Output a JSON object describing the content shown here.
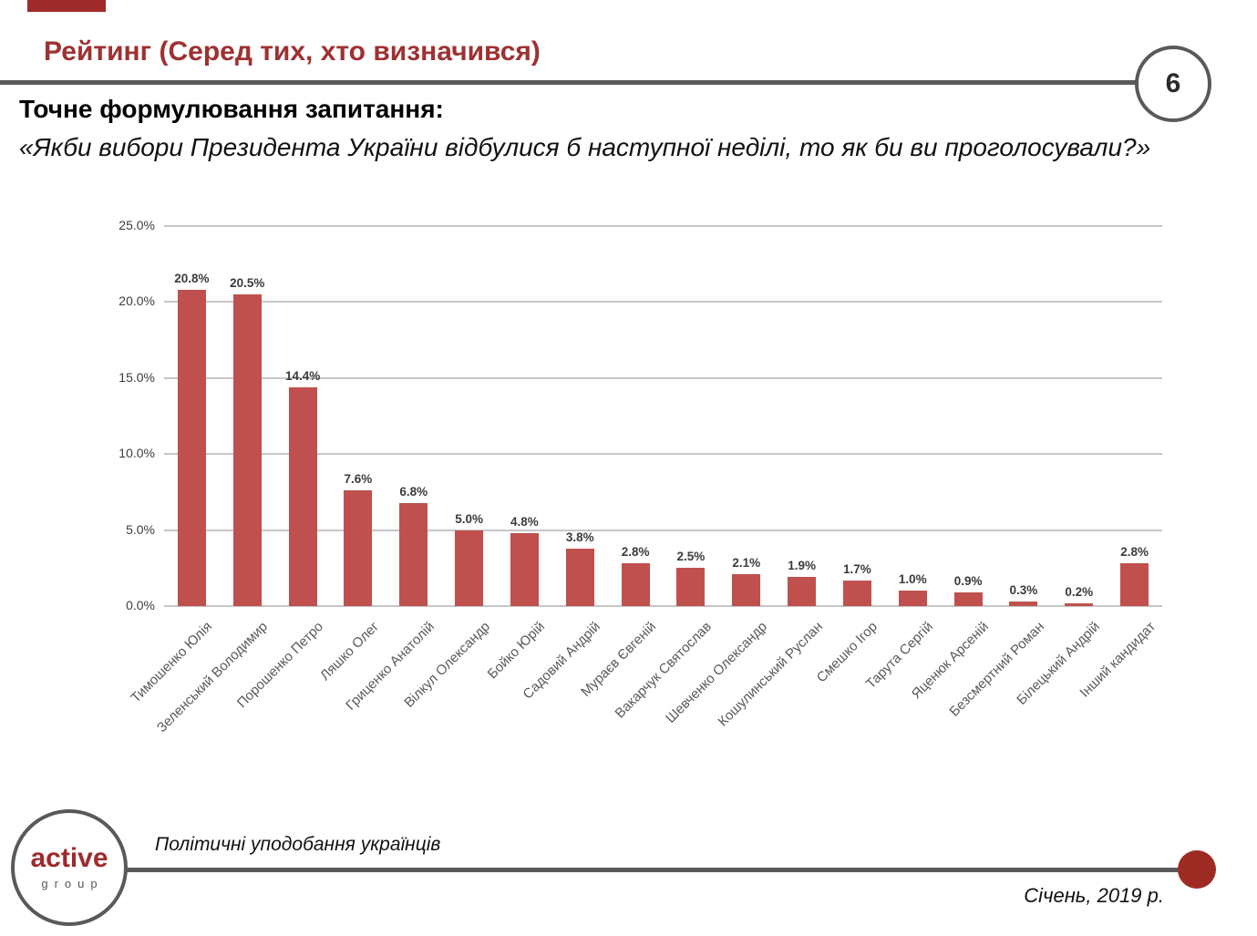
{
  "slide": {
    "page_number": "6",
    "title": "Рейтинг (Серед тих, хто визначився)",
    "question_label": "Точне формулювання запитання:",
    "question_text": "«Якби вибори Президента України відбулися б наступної неділі, то як би ви проголосували?»",
    "footer": {
      "logo_line1": "active",
      "logo_line2": "group",
      "project_name": "Політичні уподобання українців",
      "date": "Січень, 2019 р."
    },
    "colors": {
      "accent_bar_red": "#c0504d",
      "title_red": "#9e3132",
      "divider_gray": "#58595b",
      "footer_dot_red": "#9e2b23"
    }
  },
  "chart_data": {
    "type": "bar",
    "title": "",
    "xlabel": "",
    "ylabel": "",
    "categories": [
      "Тимошенко Юлія",
      "Зеленський Володимир",
      "Порошенко Петро",
      "Ляшко Олег",
      "Гриценко Анатолій",
      "Вілкул Олександр",
      "Бойко Юрій",
      "Садовий Андрій",
      "Мураєв Євгеній",
      "Вакарчук Святослав",
      "Шевченко Олександр",
      "Кошулинський Руслан",
      "Смешко Ігор",
      "Тарута Сергій",
      "Яценюк Арсеній",
      "Безсмертний Роман",
      "Білецький Андрій",
      "Інший кандидат"
    ],
    "values": [
      20.8,
      20.5,
      14.4,
      7.6,
      6.8,
      5.0,
      4.8,
      3.8,
      2.8,
      2.5,
      2.1,
      1.9,
      1.7,
      1.0,
      0.9,
      0.3,
      0.2,
      2.8
    ],
    "value_labels": [
      "20.8%",
      "20.5%",
      "14.4%",
      "7.6%",
      "6.8%",
      "5.0%",
      "4.8%",
      "3.8%",
      "2.8%",
      "2.5%",
      "2.1%",
      "1.9%",
      "1.7%",
      "1.0%",
      "0.9%",
      "0.3%",
      "0.2%",
      "2.8%"
    ],
    "ylim": [
      0,
      25
    ],
    "ytick_values": [
      25,
      20,
      15,
      10,
      5,
      0
    ],
    "ytick_labels": [
      "25.0%",
      "20.0%",
      "15.0%",
      "10.0%",
      "5.0%",
      "0.0%"
    ],
    "grid": true,
    "legend": "none",
    "bar_color": "#c0504d"
  }
}
